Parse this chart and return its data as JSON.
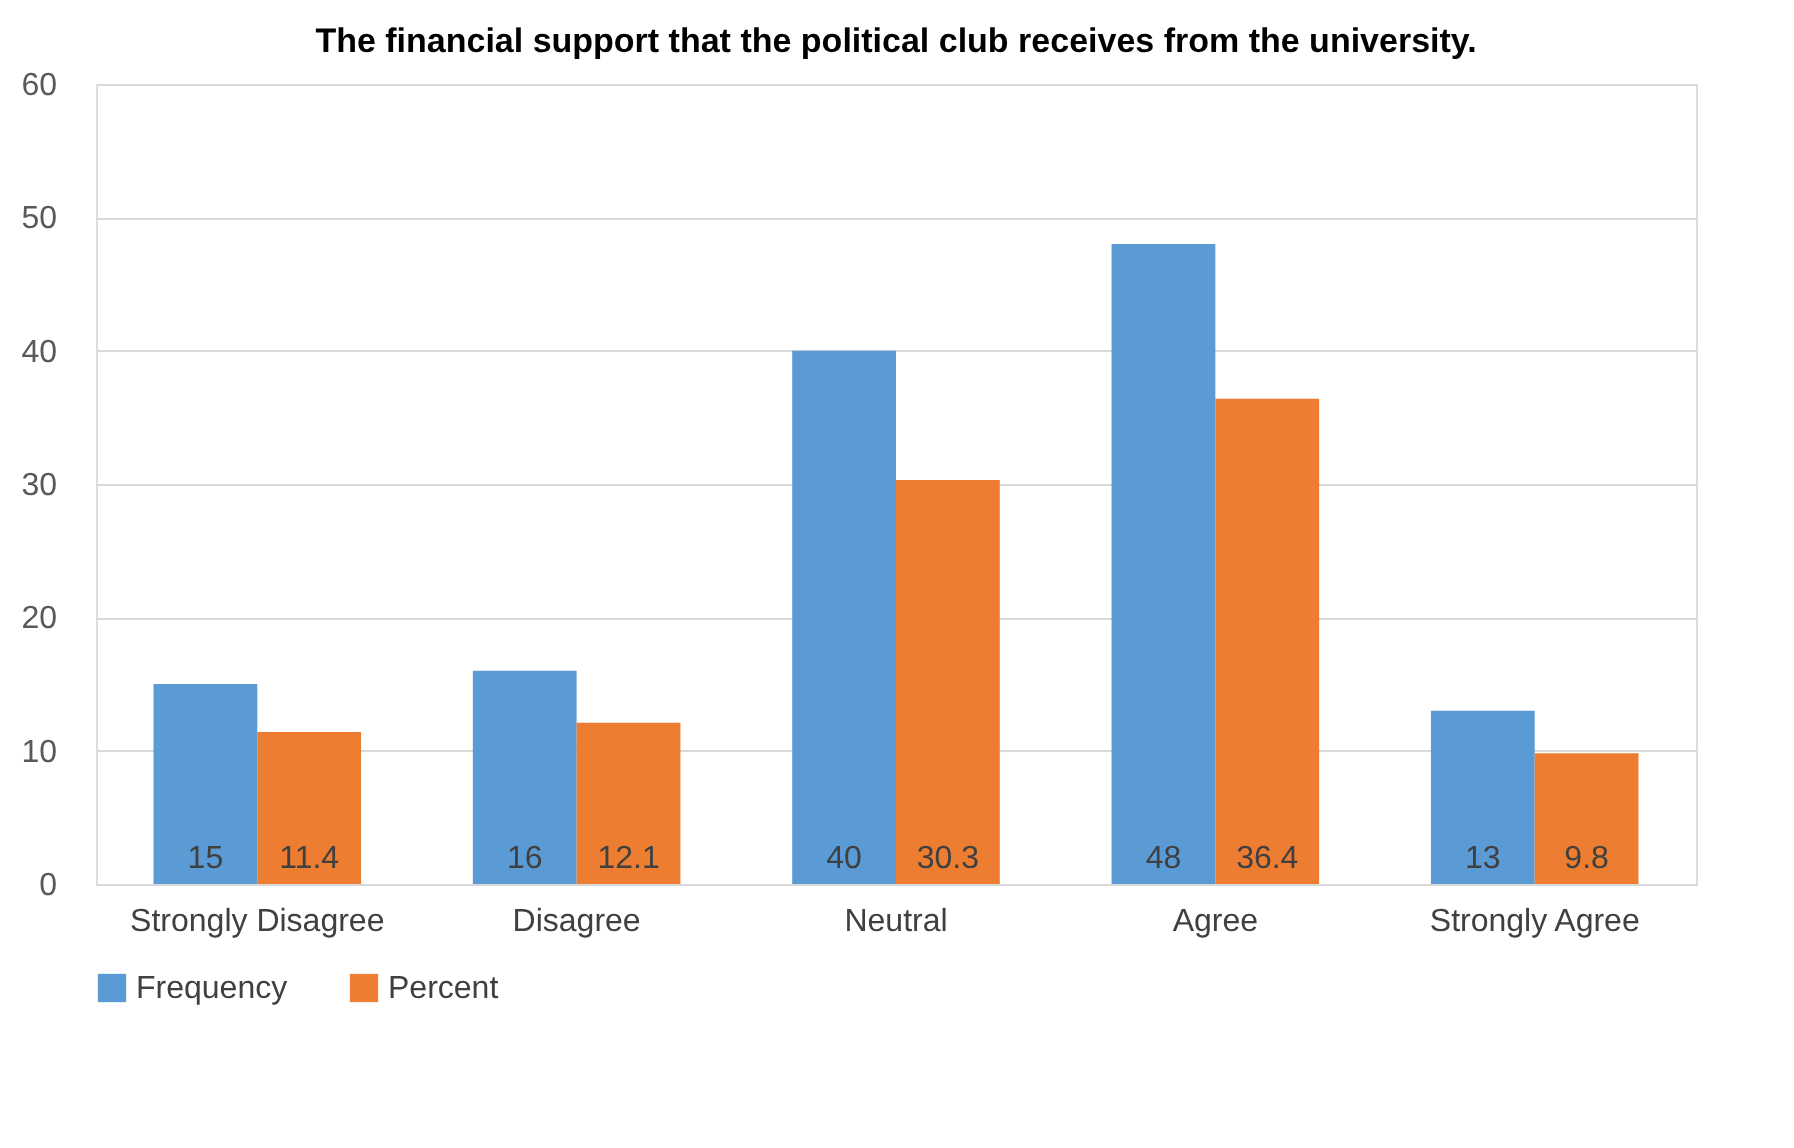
{
  "chart_data": {
    "type": "bar",
    "title": "The financial support that the political club receives from the university.",
    "categories": [
      "Strongly Disagree",
      "Disagree",
      "Neutral",
      "Agree",
      "Strongly Agree"
    ],
    "series": [
      {
        "name": "Frequency",
        "color": "#5b9bd5",
        "values": [
          15,
          16,
          40,
          48,
          13
        ]
      },
      {
        "name": "Percent",
        "color": "#ed7d31",
        "values": [
          11.4,
          12.1,
          30.3,
          36.4,
          9.8
        ]
      }
    ],
    "ylim": [
      0,
      60
    ],
    "yticks": [
      0,
      10,
      20,
      30,
      40,
      50,
      60
    ],
    "grid": "y",
    "legend": "bottom",
    "data_labels": true
  }
}
